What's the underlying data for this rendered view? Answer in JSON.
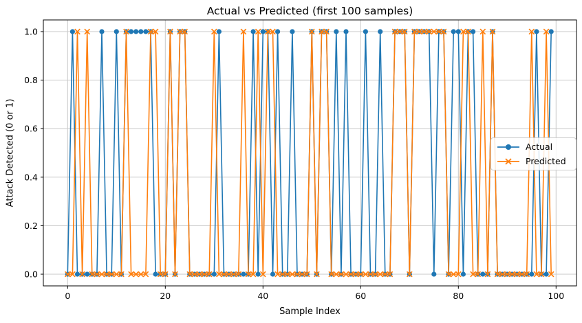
{
  "title": "Actual vs Predicted (first 100 samples)",
  "chart_data": {
    "type": "line",
    "title": "Actual vs Predicted (first 100 samples)",
    "xlabel": "Sample Index",
    "ylabel": "Attack Detected (0 or 1)",
    "x_ticks": [
      "0",
      "20",
      "40",
      "60",
      "80",
      "100"
    ],
    "x_tick_values": [
      0,
      20,
      40,
      60,
      80,
      100
    ],
    "y_ticks": [
      "0.0",
      "0.2",
      "0.4",
      "0.6",
      "0.8",
      "1.0"
    ],
    "y_tick_values": [
      0.0,
      0.2,
      0.4,
      0.6,
      0.8,
      1.0
    ],
    "xlim": [
      -5,
      105
    ],
    "ylim": [
      -0.05,
      1.05
    ],
    "grid": true,
    "grid_color": "#c8c8c8",
    "legend_position": "center right",
    "series": [
      {
        "name": "Actual",
        "color": "#1f77b4",
        "marker": "circle",
        "values": [
          0,
          1,
          0,
          0,
          0,
          0,
          0,
          1,
          0,
          0,
          1,
          0,
          1,
          1,
          1,
          1,
          1,
          1,
          0,
          0,
          0,
          1,
          0,
          1,
          1,
          0,
          0,
          0,
          0,
          0,
          0,
          1,
          0,
          0,
          0,
          0,
          0,
          0,
          1,
          0,
          1,
          1,
          0,
          1,
          0,
          0,
          1,
          0,
          0,
          0,
          1,
          0,
          1,
          1,
          0,
          1,
          0,
          1,
          0,
          0,
          0,
          1,
          0,
          0,
          1,
          0,
          0,
          1,
          1,
          1,
          0,
          1,
          1,
          1,
          1,
          0,
          1,
          1,
          0,
          1,
          1,
          0,
          1,
          1,
          0,
          0,
          0,
          1,
          0,
          0,
          0,
          0,
          0,
          0,
          0,
          0,
          1,
          0,
          0,
          1
        ]
      },
      {
        "name": "Predicted",
        "color": "#ff7f0e",
        "marker": "x",
        "values": [
          0,
          0,
          1,
          0,
          1,
          0,
          0,
          0,
          0,
          0,
          0,
          0,
          1,
          0,
          0,
          0,
          0,
          1,
          1,
          0,
          0,
          1,
          0,
          1,
          1,
          0,
          0,
          0,
          0,
          0,
          1,
          0,
          0,
          0,
          0,
          0,
          1,
          0,
          0,
          1,
          0,
          1,
          1,
          0,
          0,
          0,
          0,
          0,
          0,
          0,
          1,
          0,
          1,
          1,
          0,
          0,
          0,
          0,
          0,
          0,
          0,
          0,
          0,
          0,
          0,
          0,
          0,
          1,
          1,
          1,
          0,
          1,
          1,
          1,
          1,
          1,
          1,
          1,
          0,
          0,
          0,
          1,
          1,
          0,
          0,
          1,
          0,
          1,
          0,
          0,
          0,
          0,
          0,
          0,
          0,
          1,
          0,
          0,
          1,
          0
        ]
      }
    ]
  }
}
